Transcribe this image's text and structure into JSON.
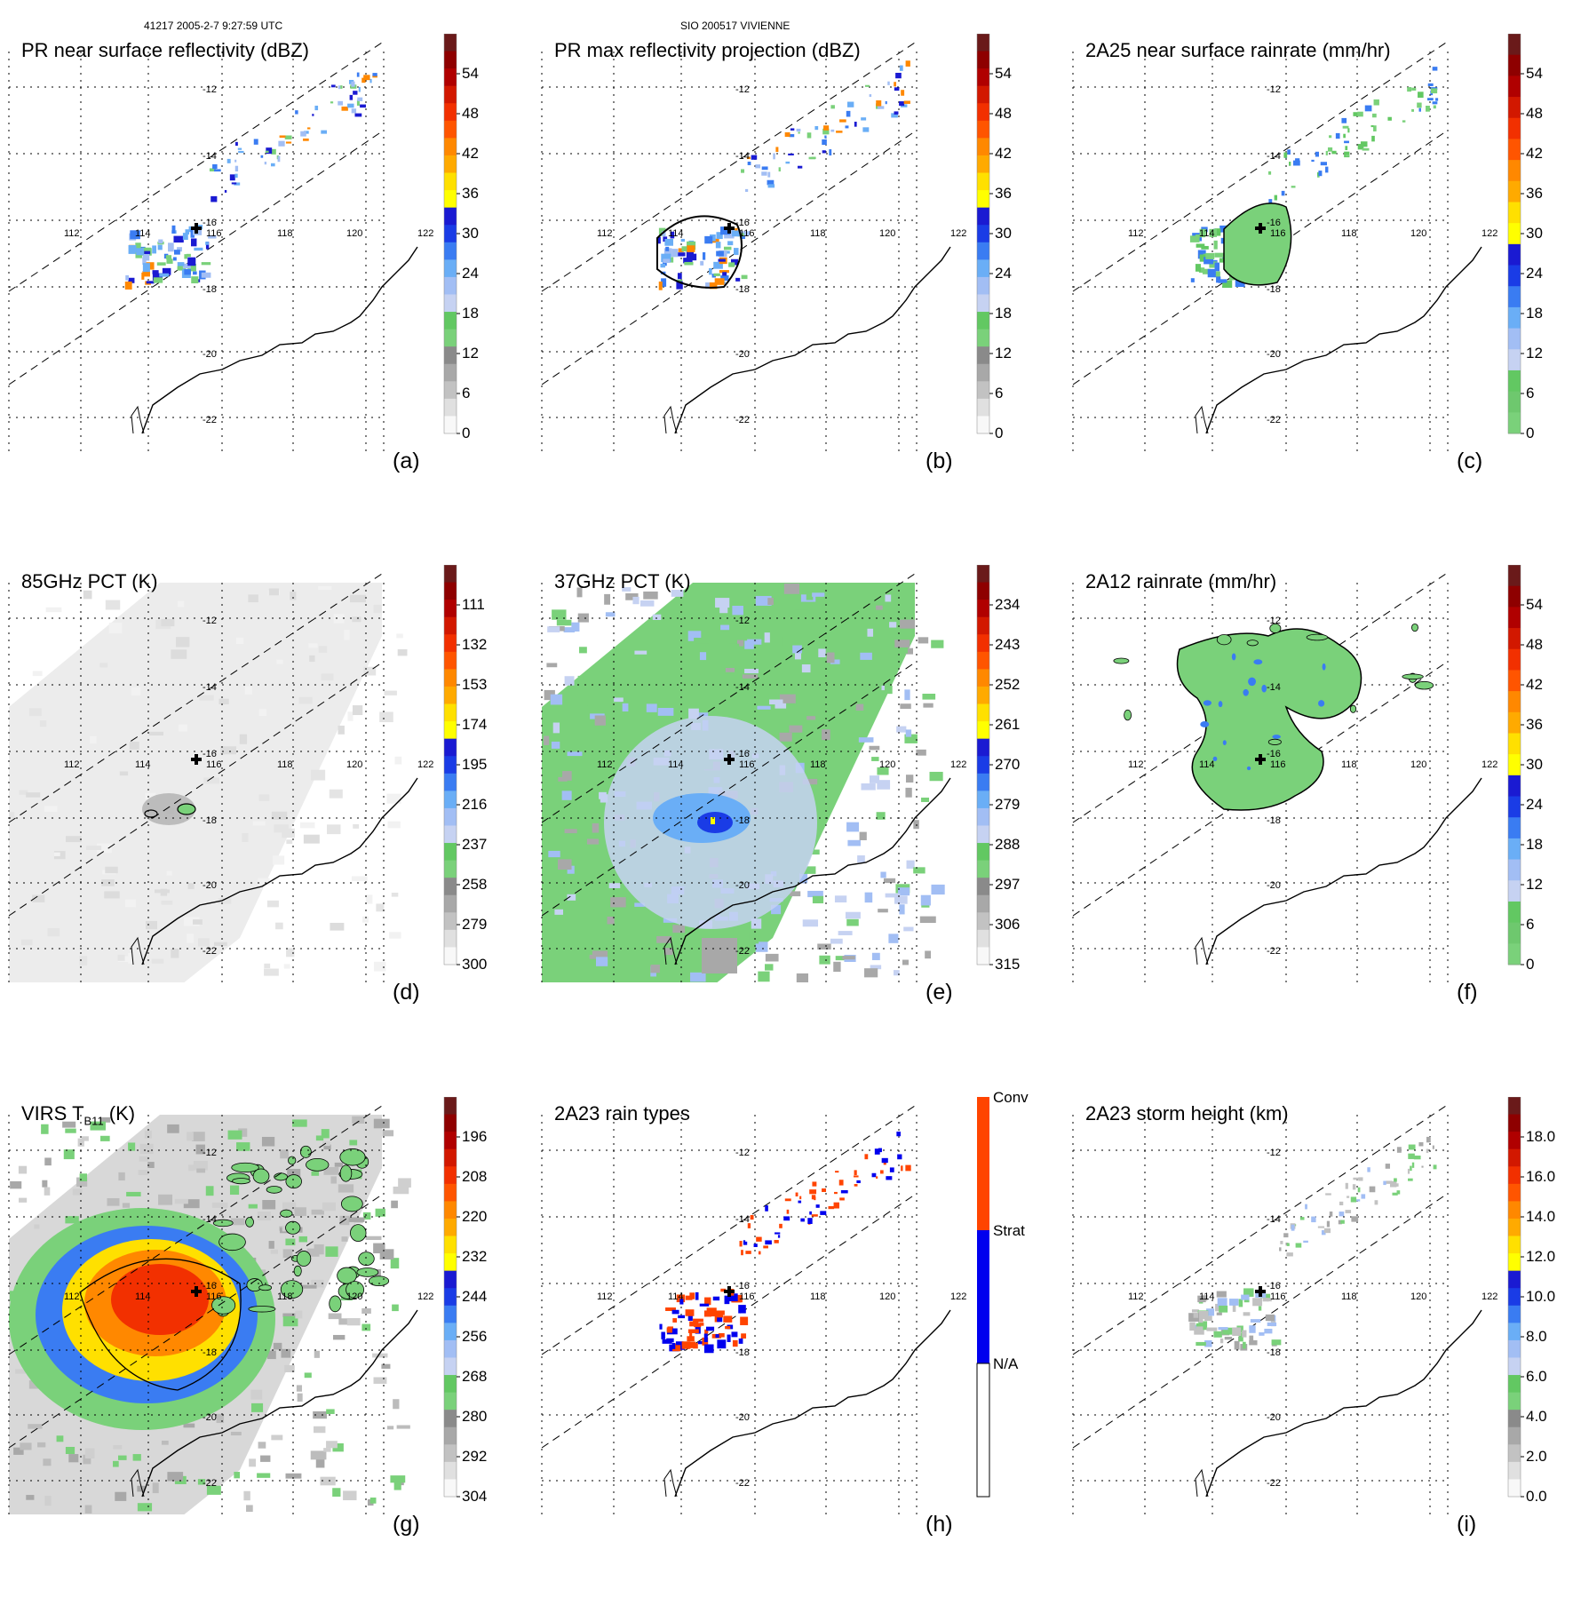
{
  "header": {
    "left": "41217 2005-2-7 9:27:59 UTC",
    "center": "SIO 200517 VIVIENNE"
  },
  "grid": {
    "lon_labels": [
      "112",
      "114",
      "116",
      "118",
      "120",
      "122"
    ],
    "lat_labels": [
      "-12",
      "-14",
      "-16",
      "-18",
      "-20",
      "-22"
    ]
  },
  "palettes": {
    "std": [
      "#f8f8f8",
      "#e0e0e0",
      "#c2c2c2",
      "#a8a8a8",
      "#8a8a8a",
      "#7ad17a",
      "#62c862",
      "#c6d2f2",
      "#a2bef4",
      "#6aaef6",
      "#3a7cf2",
      "#1a3ce6",
      "#1a1ad2",
      "#ffff00",
      "#ffe000",
      "#ffaa00",
      "#ff8800",
      "#ff5500",
      "#f23000",
      "#d21800",
      "#b00000",
      "#8e0000",
      "#6a1a1a"
    ],
    "std_rain": [
      "#7ad17a",
      "#6ec86e",
      "#62c862",
      "#c6d2f2",
      "#a2bef4",
      "#6aaef6",
      "#3a7cf2",
      "#1a3ce6",
      "#1a1ad2",
      "#ffff00",
      "#ffe000",
      "#ffaa00",
      "#ff8800",
      "#ff5500",
      "#f23000",
      "#d21800",
      "#b00000",
      "#8e0000",
      "#6a1a1a"
    ],
    "std_height": [
      "#f8f8f8",
      "#e0e0e0",
      "#c2c2c2",
      "#a8a8a8",
      "#8a8a8a",
      "#7ad17a",
      "#62c862",
      "#c6d2f2",
      "#a2bef4",
      "#6aaef6",
      "#3a7cf2",
      "#1a3ce6",
      "#1a1ad2",
      "#ffff00",
      "#ffe000",
      "#ffaa00",
      "#ff8800",
      "#ff5500",
      "#f23000",
      "#d21800",
      "#b00000",
      "#8e0000",
      "#6a1a1a"
    ],
    "raintype": [
      "#ffffff",
      "#0000ee",
      "#ff4400"
    ]
  },
  "colors": {
    "storm_center": "#000000",
    "coast": "#000000",
    "grid": "#000000"
  },
  "panels": [
    {
      "id": "a",
      "title": "PR near surface reflectivity (dBZ)",
      "letter": "(a)",
      "swath": "none",
      "ticks": [
        "54",
        "48",
        "42",
        "36",
        "30",
        "24",
        "18",
        "12",
        "6",
        "0"
      ],
      "palette": "std"
    },
    {
      "id": "b",
      "title": "PR max reflectivity projection (dBZ)",
      "letter": "(b)",
      "swath": "none",
      "ticks": [
        "54",
        "48",
        "42",
        "36",
        "30",
        "24",
        "18",
        "12",
        "6",
        "0"
      ],
      "palette": "std"
    },
    {
      "id": "c",
      "title": "2A25 near surface rainrate (mm/hr)",
      "letter": "(c)",
      "swath": "none",
      "ticks": [
        "54",
        "48",
        "42",
        "36",
        "30",
        "24",
        "18",
        "12",
        "6",
        "0"
      ],
      "palette": "std_rain"
    },
    {
      "id": "d",
      "title": "85GHz PCT (K)",
      "letter": "(d)",
      "swath": "gray",
      "ticks": [
        "111",
        "132",
        "153",
        "174",
        "195",
        "216",
        "237",
        "258",
        "279",
        "300"
      ],
      "palette": "std"
    },
    {
      "id": "e",
      "title": "37GHz PCT (K)",
      "letter": "(e)",
      "swath": "green",
      "ticks": [
        "234",
        "243",
        "252",
        "261",
        "270",
        "279",
        "288",
        "297",
        "306",
        "315"
      ],
      "palette": "std"
    },
    {
      "id": "f",
      "title": "2A12 rainrate (mm/hr)",
      "letter": "(f)",
      "swath": "none",
      "ticks": [
        "54",
        "48",
        "42",
        "36",
        "30",
        "24",
        "18",
        "12",
        "6",
        "0"
      ],
      "palette": "std_rain"
    },
    {
      "id": "g",
      "title": "VIRS T",
      "title_sub": "B11",
      "title_end": " (K)",
      "letter": "(g)",
      "swath": "virs",
      "ticks": [
        "196",
        "208",
        "220",
        "232",
        "244",
        "256",
        "268",
        "280",
        "292",
        "304"
      ],
      "palette": "std"
    },
    {
      "id": "h",
      "title": "2A23 rain types",
      "letter": "(h)",
      "swath": "none",
      "ticks": [
        "Conv",
        "Strat",
        "N/A"
      ],
      "palette": "raintype"
    },
    {
      "id": "i",
      "title": "2A23 storm height (km)",
      "letter": "(i)",
      "swath": "none",
      "ticks": [
        "18.0",
        "16.0",
        "14.0",
        "12.0",
        "10.0",
        "8.0",
        "6.0",
        "4.0",
        "2.0",
        "0.0"
      ],
      "palette": "std_height"
    }
  ]
}
